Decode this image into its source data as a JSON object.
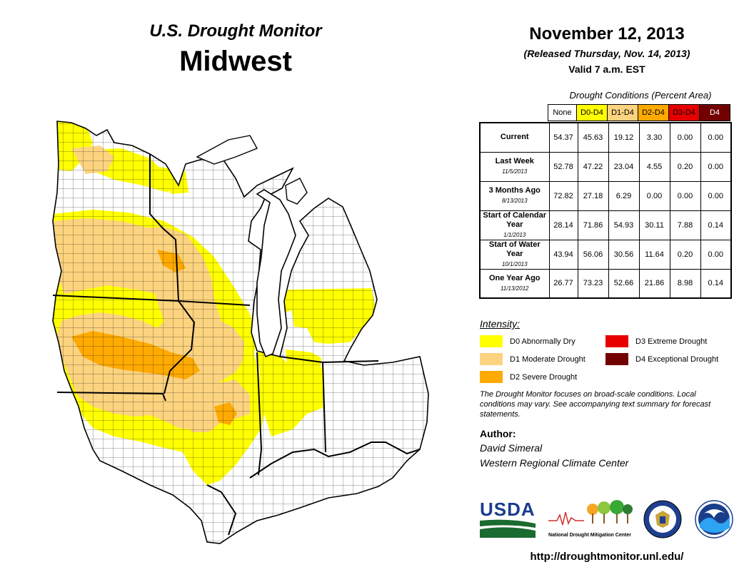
{
  "header": {
    "subtitle": "U.S. Drought Monitor",
    "region": "Midwest",
    "date": "November 12, 2013",
    "released": "(Released Thursday, Nov. 14, 2013)",
    "valid": "Valid 7 a.m. EST"
  },
  "table": {
    "caption": "Drought Conditions (Percent Area)",
    "columns": [
      "None",
      "D0-D4",
      "D1-D4",
      "D2-D4",
      "D3-D4",
      "D4"
    ],
    "column_colors": [
      "#ffffff",
      "#ffff00",
      "#fcd37f",
      "#ffaa00",
      "#e60000",
      "#730000"
    ],
    "rows": [
      {
        "label": "Current",
        "date": "",
        "values": [
          "54.37",
          "45.63",
          "19.12",
          "3.30",
          "0.00",
          "0.00"
        ]
      },
      {
        "label": "Last Week",
        "date": "11/5/2013",
        "values": [
          "52.78",
          "47.22",
          "23.04",
          "4.55",
          "0.20",
          "0.00"
        ]
      },
      {
        "label": "3 Months Ago",
        "date": "8/13/2013",
        "values": [
          "72.82",
          "27.18",
          "6.29",
          "0.00",
          "0.00",
          "0.00"
        ]
      },
      {
        "label": "Start of Calendar Year",
        "date": "1/1/2013",
        "values": [
          "28.14",
          "71.86",
          "54.93",
          "30.11",
          "7.88",
          "0.14"
        ]
      },
      {
        "label": "Start of Water Year",
        "date": "10/1/2013",
        "values": [
          "43.94",
          "56.06",
          "30.56",
          "11.64",
          "0.20",
          "0.00"
        ]
      },
      {
        "label": "One Year Ago",
        "date": "11/13/2012",
        "values": [
          "26.77",
          "73.23",
          "52.66",
          "21.86",
          "8.98",
          "0.14"
        ]
      }
    ]
  },
  "legend": {
    "title": "Intensity:",
    "items": [
      {
        "label": "D0 Abnormally Dry",
        "color": "#ffff00"
      },
      {
        "label": "D1 Moderate Drought",
        "color": "#fcd37f"
      },
      {
        "label": "D2 Severe Drought",
        "color": "#ffaa00"
      },
      {
        "label": "D3 Extreme Drought",
        "color": "#e60000"
      },
      {
        "label": "D4 Exceptional Drought",
        "color": "#730000"
      }
    ]
  },
  "note": "The Drought Monitor focuses on broad-scale conditions. Local conditions may vary. See accompanying text summary for forecast statements.",
  "author": {
    "label": "Author:",
    "name": "David Simeral",
    "org": "Western Regional Climate Center"
  },
  "logos": {
    "usda": "USDA",
    "ndmc": "National Drought Mitigation Center"
  },
  "url": "http://droughtmonitor.unl.edu/",
  "map": {
    "states": [
      "Minnesota",
      "Iowa",
      "Missouri",
      "Wisconsin",
      "Illinois",
      "Michigan",
      "Indiana",
      "Ohio",
      "Kentucky"
    ],
    "colors": {
      "water": "#ffffff",
      "land": "#ffffff",
      "border": "#000000"
    }
  }
}
